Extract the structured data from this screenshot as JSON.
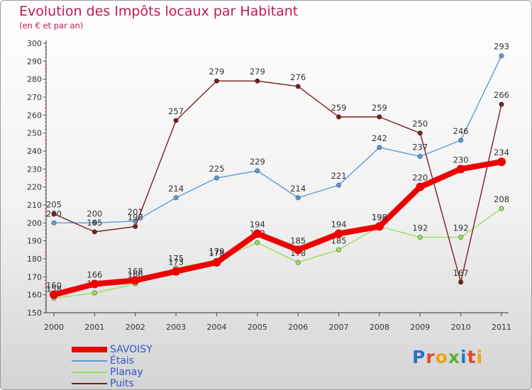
{
  "title": "Evolution des Impôts locaux par Habitant",
  "subtitle": "(en € et par an)",
  "logo": {
    "text": "Proxiti",
    "letter_colors": [
      "#2f72c7",
      "#e8432c",
      "#f2a21a",
      "#5cb03a",
      "#2f72c7",
      "#e8432c",
      "#f2a21a"
    ]
  },
  "chart_data": {
    "type": "line",
    "categories": [
      "2000",
      "2001",
      "2002",
      "2003",
      "2004",
      "2005",
      "2006",
      "2007",
      "2008",
      "2009",
      "2010",
      "2011"
    ],
    "y_ticks": [
      150,
      160,
      170,
      180,
      190,
      200,
      210,
      220,
      230,
      240,
      250,
      260,
      270,
      280,
      290,
      300
    ],
    "ylim": [
      150,
      300
    ],
    "grid": false,
    "series": [
      {
        "name": "SAVOISY",
        "color": "#ee0000",
        "values": [
          160,
          166,
          168,
          173,
          178,
          194,
          185,
          194,
          198,
          220,
          230,
          234
        ],
        "thick": true
      },
      {
        "name": "Étais",
        "color": "#5b9bd5",
        "values": [
          200,
          200,
          201,
          214,
          225,
          229,
          214,
          221,
          242,
          237,
          246,
          293
        ]
      },
      {
        "name": "Planay",
        "color": "#99e05a",
        "values": [
          158,
          161,
          166,
          175,
          179,
          189,
          178,
          185,
          198,
          192,
          192,
          208
        ]
      },
      {
        "name": "Puits",
        "color": "#7a1f1f",
        "values": [
          205,
          195,
          198,
          257,
          279,
          279,
          276,
          259,
          259,
          250,
          167,
          266
        ]
      }
    ]
  }
}
